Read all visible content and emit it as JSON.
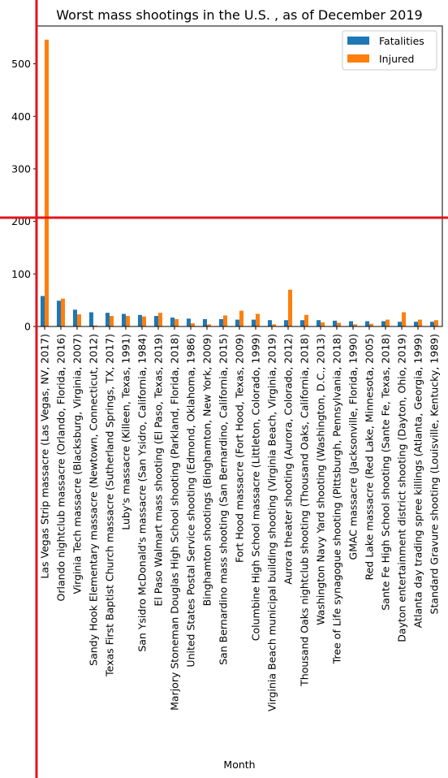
{
  "chart_data": {
    "type": "bar",
    "title": "Worst mass shootings in the U.S. , as of December 2019",
    "xlabel": "Month",
    "ylabel": "",
    "ylim": [
      0,
      572
    ],
    "yticks": [
      0,
      100,
      200,
      300,
      400,
      500
    ],
    "grid": false,
    "legend_position": "top-right",
    "categories": [
      "Las Vegas Strip massacre (Las Vegas, NV, 2017)",
      "Orlando nightclub massacre (Orlando, Florida, 2016)",
      "Virginia Tech massacre (Blacksburg, Virginia, 2007)",
      "Sandy Hook Elementary massacre (Newtown, Connecticut, 2012)",
      "Texas First Baptist Church massacre (Sutherland Springs, TX, 2017)",
      "Luby's massacre (Killeen, Texas, 1991)",
      "San Ysidro McDonald's massacre (San Ysidro, California, 1984)",
      "El Paso Walmart mass shooting (El Paso, Texas, 2019)",
      "Marjory Stoneman Douglas High School shooting (Parkland, Florida, 2018)",
      "United States Postal Service shooting (Edmond, Oklahoma, 1986)",
      "Binghamton shootings (Binghamton, New York, 2009)",
      "San Bernardino mass shooting (San Bernardino, California, 2015)",
      "Fort Hood massacre (Fort Hood, Texas, 2009)",
      "Columbine High School massacre (Littleton, Colorado, 1999)",
      "Virginia Beach municipal building shooting (Virginia Beach, Virginia, 2019)",
      "Aurora theater shooting (Aurora, Colorado, 2012)",
      "Thousand Oaks nightclub shooting (Thousand Oaks, California, 2018)",
      "Washington Navy Yard shooting (Washington, D.C., 2013)",
      "Tree of Life synagogue shooting (Pittsburgh, Pennsylvania, 2018)",
      "GMAC massacre (Jacksonville, Florida, 1990)",
      "Red Lake massacre (Red Lake, Minnesota, 2005)",
      "Sante Fe High School shooting (Sante Fe, Texas, 2018)",
      "Dayton entertainment district shooting (Dayton, Ohio, 2019)",
      "Atlanta day trading spree killings (Atlanta, Georgia, 1999)",
      "Standard Gravure shooting (Louisville, Kentucky, 1989)"
    ],
    "series": [
      {
        "name": "Fatalities",
        "color": "#1f77b4",
        "values": [
          58,
          49,
          32,
          27,
          26,
          24,
          22,
          20,
          17,
          15,
          14,
          14,
          13,
          13,
          12,
          12,
          12,
          12,
          11,
          10,
          10,
          10,
          9,
          9,
          9
        ]
      },
      {
        "name": "Injured",
        "color": "#ff7f0e",
        "values": [
          546,
          53,
          23,
          2,
          20,
          20,
          19,
          26,
          14,
          6,
          4,
          21,
          30,
          24,
          4,
          70,
          22,
          8,
          7,
          4,
          5,
          13,
          27,
          13,
          12
        ]
      }
    ]
  },
  "overlay": {
    "color": "#e0161c"
  }
}
